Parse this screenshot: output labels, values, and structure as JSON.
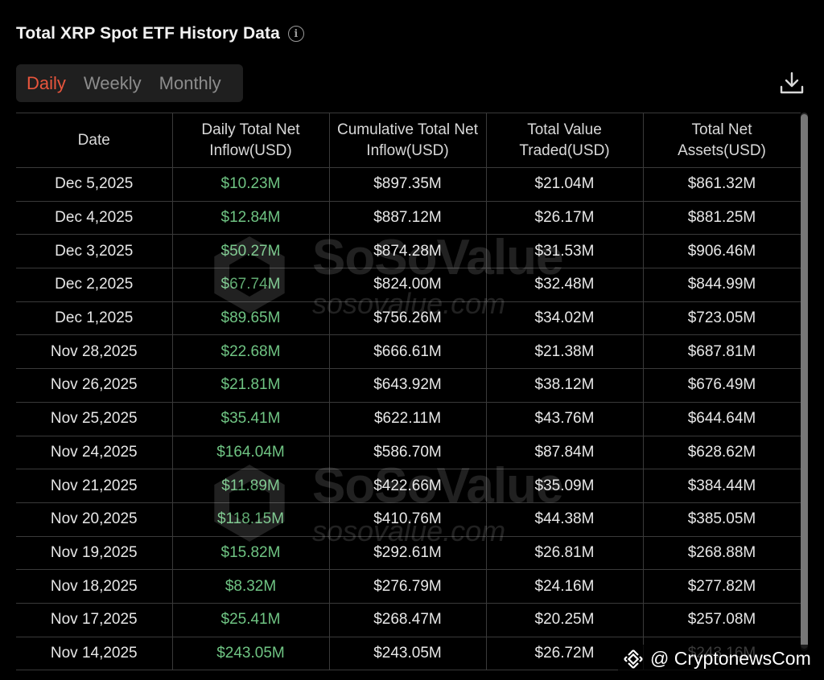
{
  "header": {
    "title": "Total XRP Spot ETF History Data",
    "info_icon": "info-circle-icon"
  },
  "tabs": [
    {
      "label": "Daily",
      "active": true
    },
    {
      "label": "Weekly",
      "active": false
    },
    {
      "label": "Monthly",
      "active": false
    }
  ],
  "toolbar": {
    "download_icon": "download-icon"
  },
  "table": {
    "columns": [
      "Date",
      "Daily Total Net Inflow(USD)",
      "Cumulative Total Net Inflow(USD)",
      "Total Value Traded(USD)",
      "Total Net Assets(USD)"
    ],
    "rows": [
      [
        "Dec 5,2025",
        "$10.23M",
        "$897.35M",
        "$21.04M",
        "$861.32M"
      ],
      [
        "Dec 4,2025",
        "$12.84M",
        "$887.12M",
        "$26.17M",
        "$881.25M"
      ],
      [
        "Dec 3,2025",
        "$50.27M",
        "$874.28M",
        "$31.53M",
        "$906.46M"
      ],
      [
        "Dec 2,2025",
        "$67.74M",
        "$824.00M",
        "$32.48M",
        "$844.99M"
      ],
      [
        "Dec 1,2025",
        "$89.65M",
        "$756.26M",
        "$34.02M",
        "$723.05M"
      ],
      [
        "Nov 28,2025",
        "$22.68M",
        "$666.61M",
        "$21.38M",
        "$687.81M"
      ],
      [
        "Nov 26,2025",
        "$21.81M",
        "$643.92M",
        "$38.12M",
        "$676.49M"
      ],
      [
        "Nov 25,2025",
        "$35.41M",
        "$622.11M",
        "$43.76M",
        "$644.64M"
      ],
      [
        "Nov 24,2025",
        "$164.04M",
        "$586.70M",
        "$87.84M",
        "$628.62M"
      ],
      [
        "Nov 21,2025",
        "$11.89M",
        "$422.66M",
        "$35.09M",
        "$384.44M"
      ],
      [
        "Nov 20,2025",
        "$118.15M",
        "$410.76M",
        "$44.38M",
        "$385.05M"
      ],
      [
        "Nov 19,2025",
        "$15.82M",
        "$292.61M",
        "$26.81M",
        "$268.88M"
      ],
      [
        "Nov 18,2025",
        "$8.32M",
        "$276.79M",
        "$24.16M",
        "$277.82M"
      ],
      [
        "Nov 17,2025",
        "$25.41M",
        "$268.47M",
        "$20.25M",
        "$257.08M"
      ],
      [
        "Nov 14,2025",
        "$243.05M",
        "$243.05M",
        "$26.72M",
        "$243.16M"
      ]
    ]
  },
  "watermark": {
    "name": "SoSoValue",
    "url": "sosovalue.com"
  },
  "credit": {
    "text": "@ CryptonewsCom"
  },
  "colors": {
    "active_tab": "#e8553d",
    "inflow": "#6fc483",
    "background": "#000000"
  }
}
